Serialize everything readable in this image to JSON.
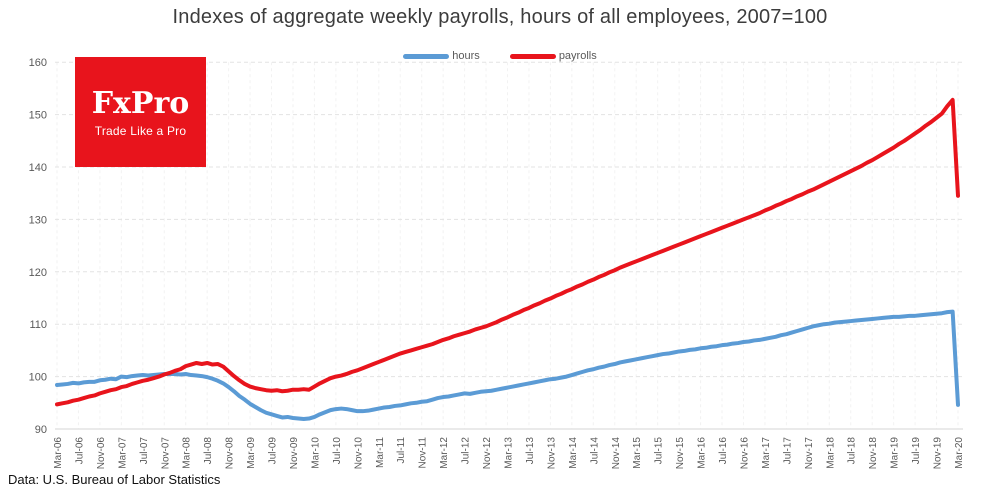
{
  "title": "Indexes of aggregate weekly payrolls, hours of all employees, 2007=100",
  "source_note": "Data: U.S. Bureau of Labor Statistics",
  "branding": {
    "logo_line1": "FxPro",
    "logo_line2": "Trade Like a Pro",
    "logo_bg": "#e8141c",
    "logo_text_color": "#ffffff"
  },
  "colors": {
    "hours_line": "#5b9bd5",
    "payrolls_line": "#e8141c",
    "gridline": "#e3e3e3",
    "axis_line": "#d6d6d6",
    "tick_text": "#595959",
    "title_text": "#3c3c3c"
  },
  "chart_data": {
    "type": "line",
    "title": "Indexes of aggregate weekly payrolls, hours of all employees, 2007=100",
    "x_unit": "month",
    "x_range": "Mar-2006 to Mar-2020, monthly",
    "ylim": [
      90,
      160
    ],
    "yticks": [
      90,
      100,
      110,
      120,
      130,
      140,
      150,
      160
    ],
    "grid": "horizontal dashed, faint vertical dashed at ticks",
    "legend_position": "top-center",
    "x_tick_labels": [
      "Mar-06",
      "Jul-06",
      "Nov-06",
      "Mar-07",
      "Jul-07",
      "Nov-07",
      "Mar-08",
      "Jul-08",
      "Nov-08",
      "Mar-09",
      "Jul-09",
      "Nov-09",
      "Mar-10",
      "Jul-10",
      "Nov-10",
      "Mar-11",
      "Jul-11",
      "Nov-11",
      "Mar-12",
      "Jul-12",
      "Nov-12",
      "Mar-13",
      "Jul-13",
      "Nov-13",
      "Mar-14",
      "Jul-14",
      "Nov-14",
      "Mar-15",
      "Jul-15",
      "Nov-15",
      "Mar-16",
      "Jul-16",
      "Nov-16",
      "Mar-17",
      "Jul-17",
      "Nov-17",
      "Mar-18",
      "Jul-18",
      "Nov-18",
      "Mar-19",
      "Jul-19",
      "Nov-19",
      "Mar-20"
    ],
    "series": [
      {
        "name": "hours",
        "color": "#5b9bd5",
        "values": [
          98.4,
          98.5,
          98.6,
          98.8,
          98.7,
          98.9,
          99.0,
          99.0,
          99.3,
          99.4,
          99.6,
          99.5,
          100.0,
          99.9,
          100.1,
          100.2,
          100.3,
          100.2,
          100.3,
          100.4,
          100.5,
          100.5,
          100.5,
          100.4,
          100.5,
          100.3,
          100.2,
          100.1,
          99.9,
          99.6,
          99.2,
          98.7,
          98.0,
          97.2,
          96.3,
          95.6,
          94.8,
          94.2,
          93.6,
          93.1,
          92.8,
          92.5,
          92.2,
          92.3,
          92.1,
          92.0,
          91.9,
          92.0,
          92.3,
          92.8,
          93.2,
          93.6,
          93.8,
          93.9,
          93.8,
          93.6,
          93.4,
          93.4,
          93.5,
          93.7,
          93.9,
          94.1,
          94.2,
          94.4,
          94.5,
          94.7,
          94.9,
          95.0,
          95.2,
          95.3,
          95.6,
          95.9,
          96.1,
          96.2,
          96.4,
          96.6,
          96.8,
          96.7,
          96.9,
          97.1,
          97.2,
          97.3,
          97.5,
          97.7,
          97.9,
          98.1,
          98.3,
          98.5,
          98.7,
          98.9,
          99.1,
          99.3,
          99.5,
          99.6,
          99.8,
          100.0,
          100.3,
          100.6,
          100.9,
          101.2,
          101.4,
          101.7,
          101.9,
          102.2,
          102.4,
          102.7,
          102.9,
          103.1,
          103.3,
          103.5,
          103.7,
          103.9,
          104.1,
          104.3,
          104.4,
          104.6,
          104.8,
          104.9,
          105.1,
          105.2,
          105.4,
          105.5,
          105.7,
          105.8,
          106.0,
          106.1,
          106.3,
          106.4,
          106.6,
          106.7,
          106.9,
          107.0,
          107.2,
          107.4,
          107.6,
          107.9,
          108.1,
          108.4,
          108.7,
          109.0,
          109.3,
          109.6,
          109.8,
          110.0,
          110.1,
          110.3,
          110.4,
          110.5,
          110.6,
          110.7,
          110.8,
          110.9,
          111.0,
          111.1,
          111.2,
          111.3,
          111.4,
          111.4,
          111.5,
          111.6,
          111.6,
          111.7,
          111.8,
          111.9,
          112.0,
          112.1,
          112.3,
          112.4,
          94.6
        ]
      },
      {
        "name": "payrolls",
        "color": "#e8141c",
        "values": [
          94.7,
          94.9,
          95.1,
          95.4,
          95.6,
          95.9,
          96.2,
          96.4,
          96.8,
          97.1,
          97.4,
          97.6,
          98.0,
          98.2,
          98.6,
          98.9,
          99.2,
          99.4,
          99.7,
          100.0,
          100.4,
          100.7,
          101.1,
          101.4,
          102.0,
          102.3,
          102.6,
          102.4,
          102.6,
          102.3,
          102.4,
          101.9,
          101.0,
          100.1,
          99.3,
          98.6,
          98.1,
          97.8,
          97.6,
          97.4,
          97.3,
          97.4,
          97.2,
          97.3,
          97.5,
          97.5,
          97.6,
          97.5,
          98.1,
          98.7,
          99.2,
          99.7,
          100.0,
          100.2,
          100.5,
          100.9,
          101.2,
          101.6,
          102.0,
          102.4,
          102.8,
          103.2,
          103.6,
          104.0,
          104.4,
          104.7,
          105.0,
          105.3,
          105.6,
          105.9,
          106.2,
          106.6,
          107.0,
          107.3,
          107.7,
          108.0,
          108.3,
          108.6,
          109.0,
          109.3,
          109.6,
          110.0,
          110.4,
          110.9,
          111.3,
          111.8,
          112.2,
          112.7,
          113.1,
          113.6,
          114.0,
          114.5,
          114.9,
          115.4,
          115.8,
          116.3,
          116.7,
          117.2,
          117.6,
          118.1,
          118.5,
          119.0,
          119.4,
          119.9,
          120.3,
          120.8,
          121.2,
          121.6,
          122.0,
          122.4,
          122.8,
          123.2,
          123.6,
          124.0,
          124.4,
          124.8,
          125.2,
          125.6,
          126.0,
          126.4,
          126.8,
          127.2,
          127.6,
          128.0,
          128.4,
          128.8,
          129.2,
          129.6,
          130.0,
          130.4,
          130.8,
          131.2,
          131.7,
          132.1,
          132.6,
          133.0,
          133.5,
          133.9,
          134.4,
          134.8,
          135.3,
          135.7,
          136.2,
          136.7,
          137.2,
          137.7,
          138.2,
          138.7,
          139.2,
          139.7,
          140.2,
          140.8,
          141.3,
          141.9,
          142.5,
          143.1,
          143.7,
          144.4,
          145.0,
          145.7,
          146.4,
          147.1,
          147.9,
          148.6,
          149.4,
          150.2,
          151.6,
          152.8,
          134.5
        ]
      }
    ]
  }
}
